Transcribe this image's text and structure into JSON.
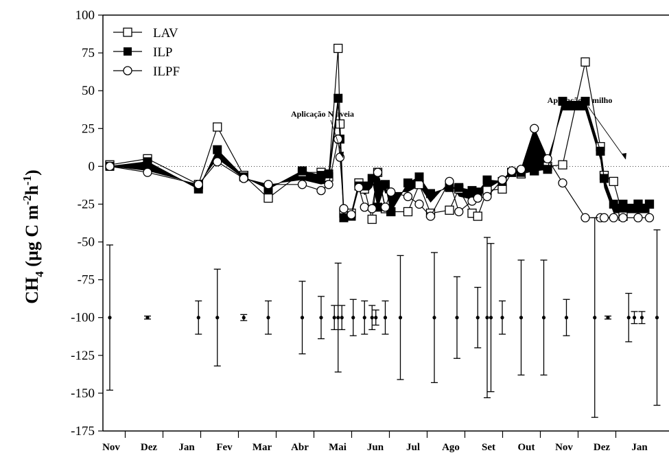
{
  "chart_data": {
    "type": "line",
    "ylabel": {
      "main": "CH",
      "sub": "4",
      "mid": " (µg C m",
      "sup1": "-2",
      "h": "h",
      "sup2": "-1",
      "end": ")"
    },
    "ylim": [
      -175,
      100
    ],
    "yticks": [
      100,
      75,
      50,
      25,
      0,
      -25,
      -50,
      -75,
      -100,
      -125,
      -150,
      -175
    ],
    "months": [
      "Nov",
      "Dez",
      "Jan",
      "Fev",
      "Mar",
      "Abr",
      "Mai",
      "Jun",
      "Jul",
      "Ago",
      "Set",
      "Out",
      "Nov",
      "Dez",
      "Jan"
    ],
    "legend": {
      "position": "top-left"
    },
    "series": [
      {
        "name": "LAV",
        "marker": "square-open",
        "color": "#000000",
        "x": [
          0,
          1.0,
          2.35,
          2.85,
          3.55,
          4.2,
          5.1,
          5.6,
          5.8,
          6.05,
          6.1,
          6.2,
          6.4,
          6.6,
          6.75,
          6.95,
          7.1,
          7.3,
          7.45,
          7.9,
          8.2,
          8.5,
          9.0,
          9.25,
          9.6,
          9.75,
          10.0,
          10.4,
          10.65,
          10.9,
          11.25,
          11.6,
          12.0,
          12.6,
          13.0,
          13.1,
          13.35,
          13.6,
          14.0,
          14.3
        ],
        "y": [
          1,
          5,
          -12,
          26,
          -6,
          -21,
          -4,
          -4,
          -7,
          78,
          28,
          -31,
          -31,
          -11,
          -15,
          -35,
          -4,
          -28,
          -30,
          -30,
          -12,
          -31,
          -29,
          -15,
          -31,
          -33,
          -16,
          -15,
          -4,
          -5,
          -3,
          0,
          1,
          69,
          13,
          -6,
          -10,
          -33,
          -25,
          -25
        ],
        "note": "x is measured in months from the first Nov tick"
      },
      {
        "name": "ILP",
        "marker": "square-filled",
        "color": "#000000",
        "x": [
          0,
          1.0,
          2.35,
          2.85,
          3.55,
          4.2,
          5.1,
          5.6,
          5.8,
          6.05,
          6.1,
          6.2,
          6.4,
          6.6,
          6.75,
          6.95,
          7.1,
          7.3,
          7.45,
          7.9,
          8.2,
          8.5,
          9.0,
          9.25,
          9.6,
          9.75,
          10.0,
          10.4,
          10.65,
          10.9,
          11.25,
          11.6,
          12.0,
          12.6,
          13.0,
          13.1,
          13.35,
          13.6,
          14.0,
          14.3
        ],
        "y": [
          0,
          3,
          -15,
          11,
          -7,
          -15,
          -3,
          -6,
          -5,
          45,
          18,
          -34,
          -33,
          -13,
          -13,
          -8,
          -27,
          -12,
          -30,
          -11,
          -7,
          -18,
          -14,
          -14,
          -16,
          -17,
          -9,
          -10,
          -4,
          -4,
          -3,
          -2,
          43,
          43,
          10,
          -8,
          -25,
          -25,
          -25,
          -25
        ],
        "note": "x is measured in months from the first Nov tick"
      },
      {
        "name": "ILPF",
        "marker": "circle-open",
        "color": "#000000",
        "x": [
          0,
          1.0,
          2.35,
          2.85,
          3.55,
          4.2,
          5.1,
          5.6,
          5.8,
          6.05,
          6.1,
          6.2,
          6.4,
          6.6,
          6.75,
          6.95,
          7.1,
          7.3,
          7.45,
          7.9,
          8.2,
          8.5,
          9.0,
          9.25,
          9.6,
          9.75,
          10.0,
          10.4,
          10.65,
          10.9,
          11.25,
          11.6,
          12.0,
          12.6,
          13.0,
          13.1,
          13.35,
          13.6,
          14.0,
          14.3
        ],
        "y": [
          0,
          -4,
          -12,
          3,
          -8,
          -12,
          -12,
          -16,
          -12,
          18,
          6,
          -28,
          -32,
          -14,
          -27,
          -28,
          -4,
          -27,
          -17,
          -20,
          -25,
          -33,
          -10,
          -30,
          -23,
          -21,
          -20,
          -9,
          -3,
          -2,
          25,
          5,
          -11,
          -34,
          -34,
          -34,
          -34,
          -34,
          -34,
          -34
        ],
        "note": "x is measured in months from the first Nov tick"
      }
    ],
    "errorbars": {
      "center": -100,
      "items": [
        {
          "x": 0.0,
          "lo": -148,
          "hi": -52
        },
        {
          "x": 1.0,
          "lo": -101,
          "hi": -99
        },
        {
          "x": 2.35,
          "lo": -111,
          "hi": -89
        },
        {
          "x": 2.85,
          "lo": -132,
          "hi": -68
        },
        {
          "x": 3.55,
          "lo": -102,
          "hi": -98
        },
        {
          "x": 4.2,
          "lo": -111,
          "hi": -89
        },
        {
          "x": 5.1,
          "lo": -124,
          "hi": -76
        },
        {
          "x": 5.6,
          "lo": -114,
          "hi": -86
        },
        {
          "x": 5.95,
          "lo": -108,
          "hi": -92
        },
        {
          "x": 6.05,
          "lo": -136,
          "hi": -64
        },
        {
          "x": 6.15,
          "lo": -108,
          "hi": -92
        },
        {
          "x": 6.45,
          "lo": -112,
          "hi": -88
        },
        {
          "x": 6.75,
          "lo": -111,
          "hi": -89
        },
        {
          "x": 6.95,
          "lo": -108,
          "hi": -92
        },
        {
          "x": 7.05,
          "lo": -105,
          "hi": -95
        },
        {
          "x": 7.3,
          "lo": -111,
          "hi": -89
        },
        {
          "x": 7.7,
          "lo": -141,
          "hi": -59
        },
        {
          "x": 8.6,
          "lo": -143,
          "hi": -57
        },
        {
          "x": 9.2,
          "lo": -127,
          "hi": -73
        },
        {
          "x": 9.75,
          "lo": -120,
          "hi": -80
        },
        {
          "x": 10.0,
          "lo": -153,
          "hi": -47
        },
        {
          "x": 10.1,
          "lo": -149,
          "hi": -51
        },
        {
          "x": 10.4,
          "lo": -111,
          "hi": -89
        },
        {
          "x": 10.9,
          "lo": -138,
          "hi": -62
        },
        {
          "x": 11.5,
          "lo": -138,
          "hi": -62
        },
        {
          "x": 12.1,
          "lo": -112,
          "hi": -88
        },
        {
          "x": 12.85,
          "lo": -166,
          "hi": -34
        },
        {
          "x": 13.2,
          "lo": -101,
          "hi": -99
        },
        {
          "x": 13.75,
          "lo": -116,
          "hi": -84
        },
        {
          "x": 13.9,
          "lo": -104,
          "hi": -96
        },
        {
          "x": 14.1,
          "lo": -104,
          "hi": -96
        },
        {
          "x": 14.5,
          "lo": -158,
          "hi": -42
        }
      ]
    },
    "annotations": [
      {
        "text": "Aplicação N aveia",
        "x": 5.95,
        "y": 3
      },
      {
        "text": "Aplicação N milho",
        "x": 13.7,
        "y": 3
      }
    ],
    "reference_line": {
      "y": 0,
      "style": "dotted"
    }
  }
}
